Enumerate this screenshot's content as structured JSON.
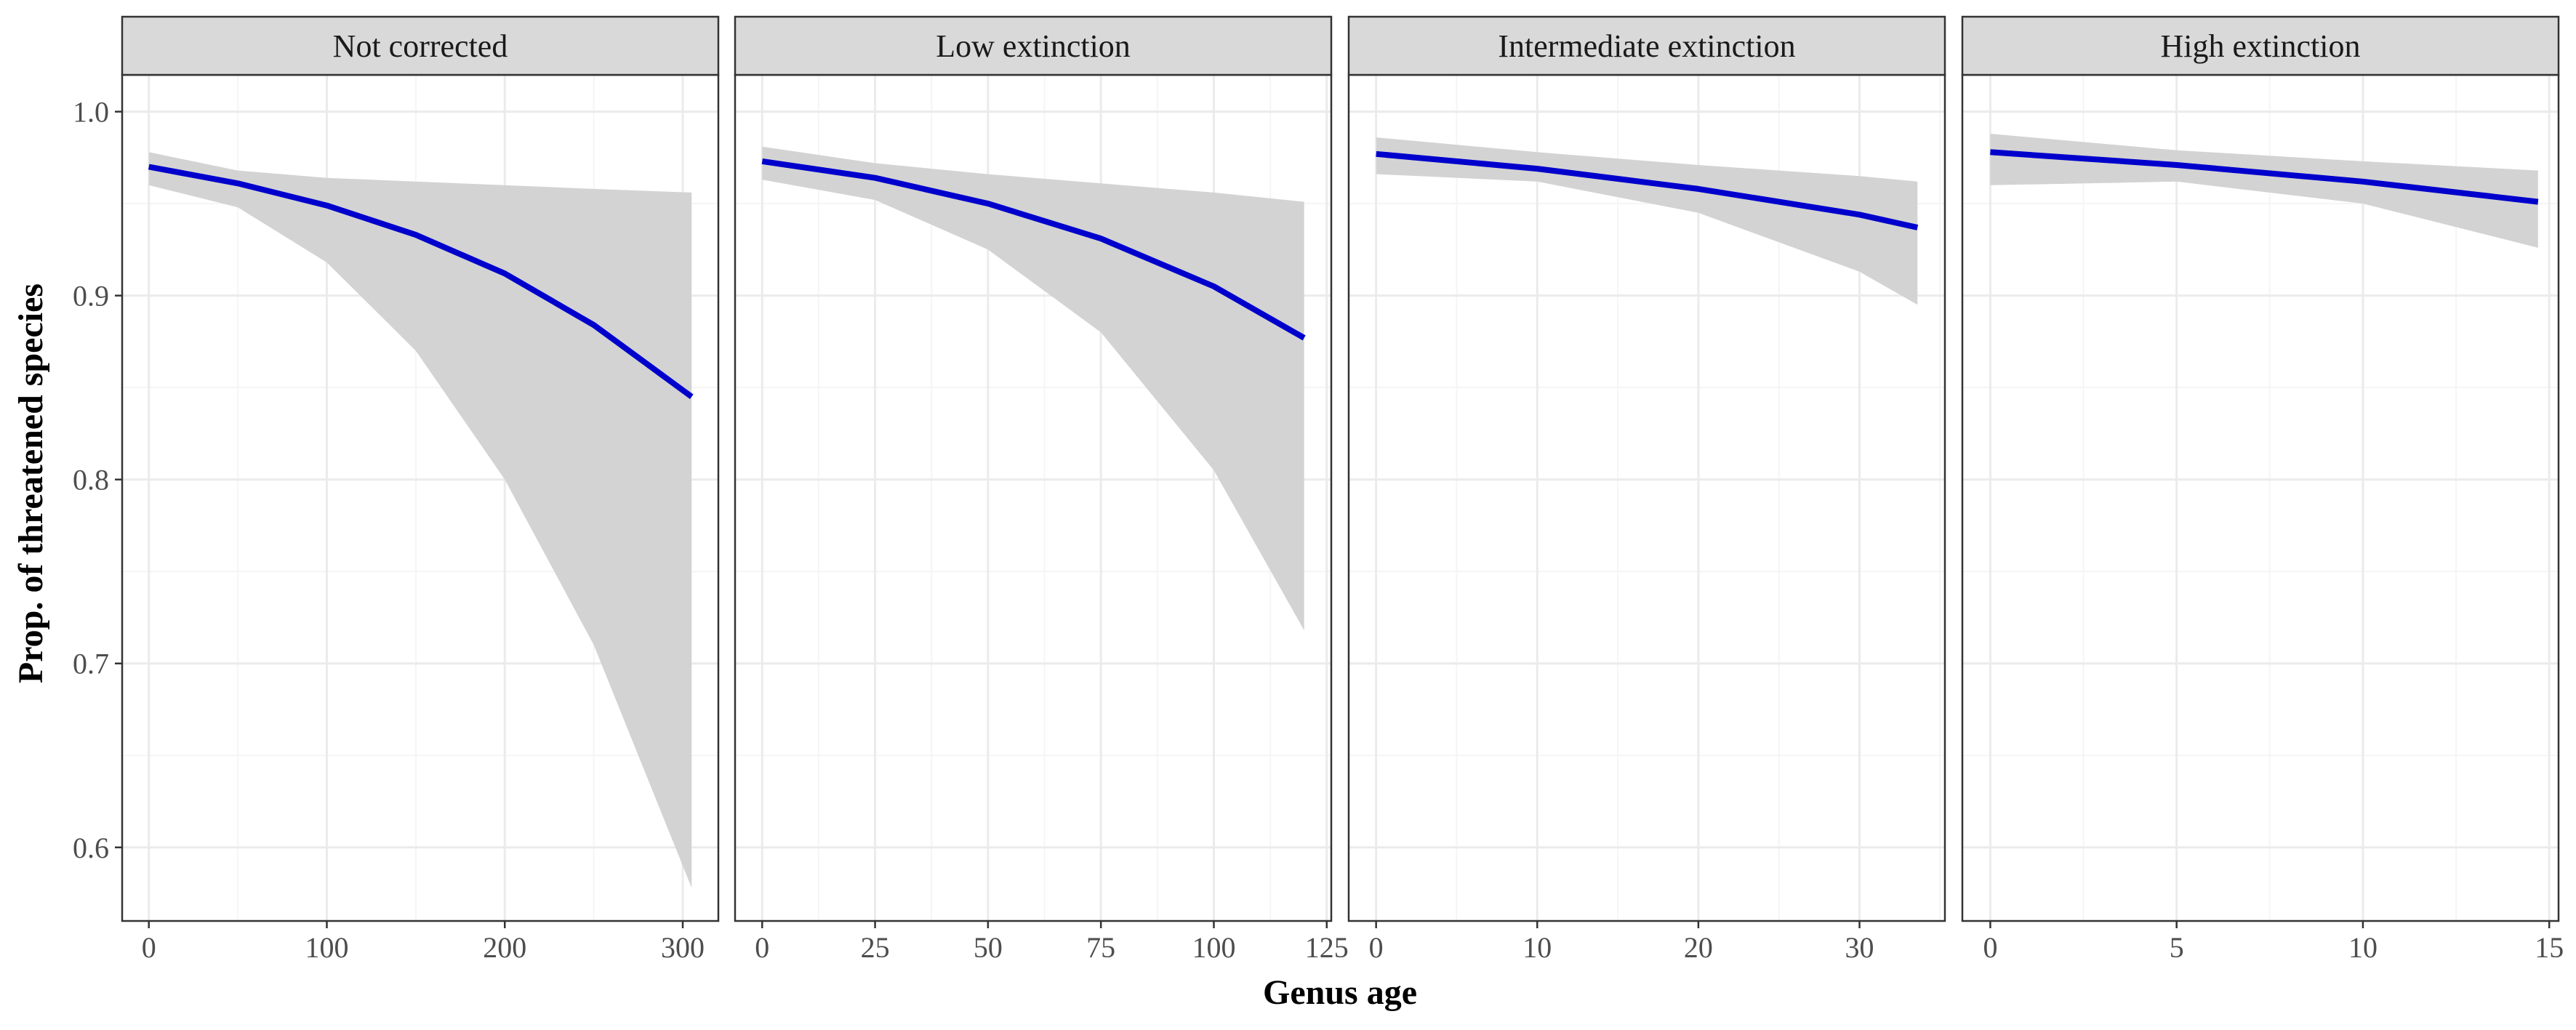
{
  "chart_data": {
    "type": "line",
    "xlabel": "Genus age",
    "ylabel": "Prop. of threatened species",
    "y_axis": {
      "ylim": [
        0.56,
        1.02
      ],
      "ticks": [
        0.6,
        0.7,
        0.8,
        0.9,
        1.0
      ],
      "tick_labels": [
        "0.6",
        "0.7",
        "0.8",
        "0.9",
        "1.0"
      ]
    },
    "grid": true,
    "colors": {
      "line": "#0000CC",
      "ribbon": "#D3D3D3",
      "strip_fill": "#D9D9D9",
      "grid_major": "#EBEBEB",
      "grid_minor": "#F5F5F5",
      "border": "#333333"
    },
    "panels": [
      {
        "title": "Not corrected",
        "xlim": [
          -15,
          320
        ],
        "x_ticks": [
          0,
          100,
          200,
          300
        ],
        "x_tick_labels": [
          "0",
          "100",
          "200",
          "300"
        ],
        "series": {
          "x": [
            0,
            50,
            100,
            150,
            200,
            250,
            305
          ],
          "y": [
            0.97,
            0.961,
            0.949,
            0.933,
            0.912,
            0.884,
            0.845
          ],
          "lower": [
            0.96,
            0.948,
            0.918,
            0.87,
            0.8,
            0.71,
            0.578
          ],
          "upper": [
            0.978,
            0.968,
            0.964,
            0.962,
            0.96,
            0.958,
            0.956
          ]
        }
      },
      {
        "title": "Low extinction",
        "xlim": [
          -6,
          126
        ],
        "x_ticks": [
          0,
          25,
          50,
          75,
          100,
          125
        ],
        "x_tick_labels": [
          "0",
          "25",
          "50",
          "75",
          "100",
          "125"
        ],
        "series": {
          "x": [
            0,
            25,
            50,
            75,
            100,
            120
          ],
          "y": [
            0.973,
            0.964,
            0.95,
            0.931,
            0.905,
            0.877
          ],
          "lower": [
            0.963,
            0.952,
            0.925,
            0.88,
            0.805,
            0.718
          ],
          "upper": [
            0.981,
            0.972,
            0.966,
            0.961,
            0.956,
            0.951
          ]
        }
      },
      {
        "title": "Intermediate extinction",
        "xlim": [
          -1.7,
          35.3
        ],
        "x_ticks": [
          0,
          10,
          20,
          30
        ],
        "x_tick_labels": [
          "0",
          "10",
          "20",
          "30"
        ],
        "series": {
          "x": [
            0,
            10,
            20,
            30,
            33.6
          ],
          "y": [
            0.977,
            0.969,
            0.958,
            0.944,
            0.937
          ],
          "lower": [
            0.966,
            0.962,
            0.945,
            0.913,
            0.895
          ],
          "upper": [
            0.986,
            0.978,
            0.971,
            0.965,
            0.962
          ]
        }
      },
      {
        "title": "High extinction",
        "xlim": [
          -0.75,
          15.25
        ],
        "x_ticks": [
          0,
          5,
          10,
          15
        ],
        "x_tick_labels": [
          "0",
          "5",
          "10",
          "15"
        ],
        "series": {
          "x": [
            0,
            5,
            10,
            14.7
          ],
          "y": [
            0.978,
            0.971,
            0.962,
            0.951
          ],
          "lower": [
            0.96,
            0.962,
            0.95,
            0.926
          ],
          "upper": [
            0.988,
            0.979,
            0.973,
            0.968
          ]
        }
      }
    ]
  }
}
